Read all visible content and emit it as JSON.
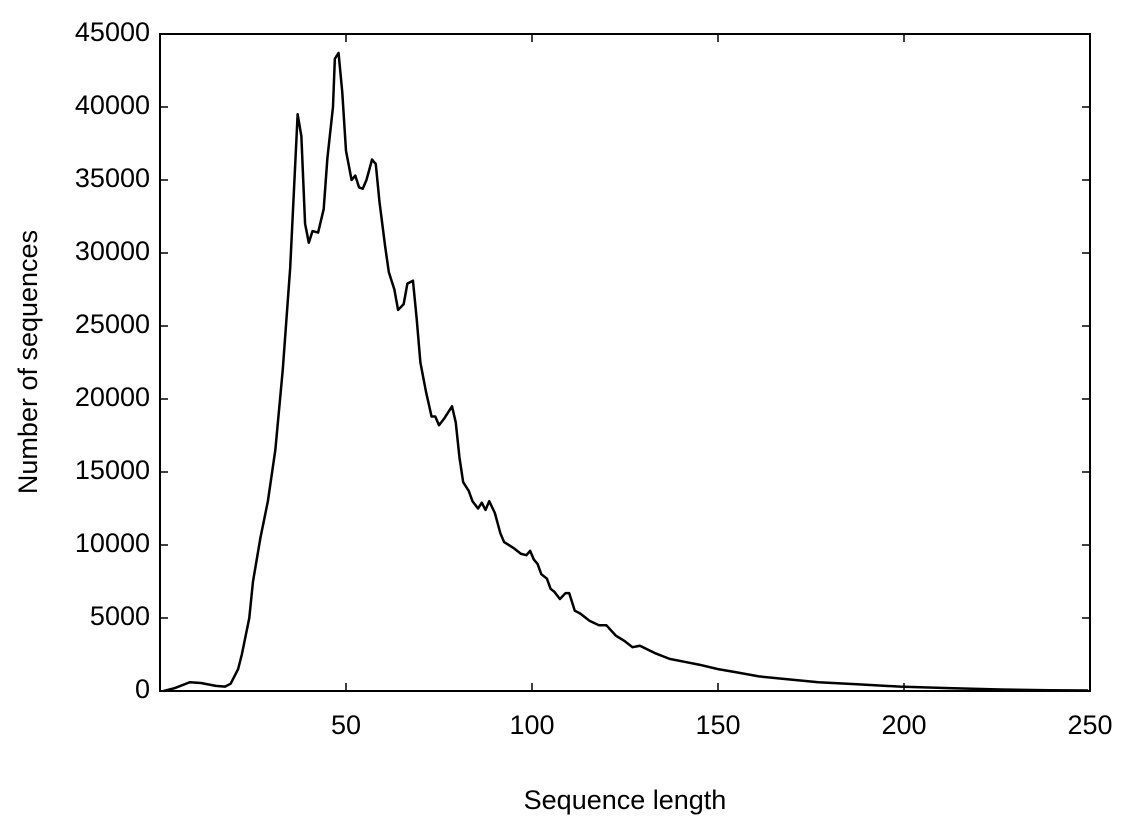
{
  "chart_data": {
    "type": "line",
    "x_label": "Sequence length",
    "y_label": "Number of sequences",
    "x": [
      1,
      4,
      8,
      11,
      15,
      17.5,
      19,
      21,
      22,
      24,
      25,
      27,
      29,
      31,
      33,
      35,
      37,
      38,
      39,
      40,
      41,
      42.5,
      44,
      45,
      46.5,
      47,
      48,
      49,
      50,
      51.5,
      52.5,
      53.5,
      54.5,
      55.5,
      57,
      58,
      59,
      60.5,
      61.5,
      63,
      64,
      65.5,
      66.5,
      68,
      69,
      70,
      71.5,
      73,
      74,
      75,
      76.5,
      78.5,
      79.5,
      80.5,
      81.5,
      83,
      84,
      85.5,
      86.5,
      87.5,
      88.5,
      90,
      91.5,
      92.5,
      95,
      97,
      98.5,
      99.5,
      100.5,
      101.5,
      102.5,
      104,
      105,
      106,
      107.5,
      109,
      110,
      111.5,
      113,
      115.5,
      118,
      120,
      122.5,
      125,
      127,
      129,
      133,
      137,
      141,
      145,
      150,
      154.5,
      161,
      169,
      177,
      188,
      199,
      212,
      226,
      239,
      249.5
    ],
    "series": [
      {
        "name": "sequences",
        "color": "#000000",
        "values": [
          0,
          200,
          600,
          550,
          350,
          300,
          500,
          1500,
          2500,
          5000,
          7500,
          10500,
          13000,
          16500,
          22000,
          29000,
          39500,
          38000,
          32000,
          30700,
          31500,
          31400,
          33000,
          36500,
          40000,
          43300,
          43700,
          41000,
          37000,
          35000,
          35300,
          34500,
          34400,
          35000,
          36400,
          36100,
          33500,
          30500,
          28700,
          27500,
          26100,
          26500,
          27900,
          28100,
          25500,
          22500,
          20500,
          18800,
          18800,
          18200,
          18700,
          19500,
          18400,
          16000,
          14300,
          13700,
          13000,
          12500,
          12900,
          12400,
          13000,
          12200,
          10800,
          10200,
          9800,
          9400,
          9300,
          9600,
          9000,
          8700,
          8000,
          7700,
          7000,
          6800,
          6300,
          6700,
          6700,
          5500,
          5300,
          4800,
          4500,
          4500,
          3800,
          3400,
          3000,
          3100,
          2600,
          2200,
          2000,
          1800,
          1500,
          1300,
          1000,
          800,
          600,
          450,
          300,
          200,
          100,
          50,
          30
        ]
      }
    ],
    "xlim": [
      0,
      250
    ],
    "ylim": [
      0,
      45000
    ],
    "xticks": [
      50,
      100,
      150,
      200,
      250
    ],
    "yticks": [
      0,
      5000,
      10000,
      15000,
      20000,
      25000,
      30000,
      35000,
      40000,
      45000
    ]
  }
}
